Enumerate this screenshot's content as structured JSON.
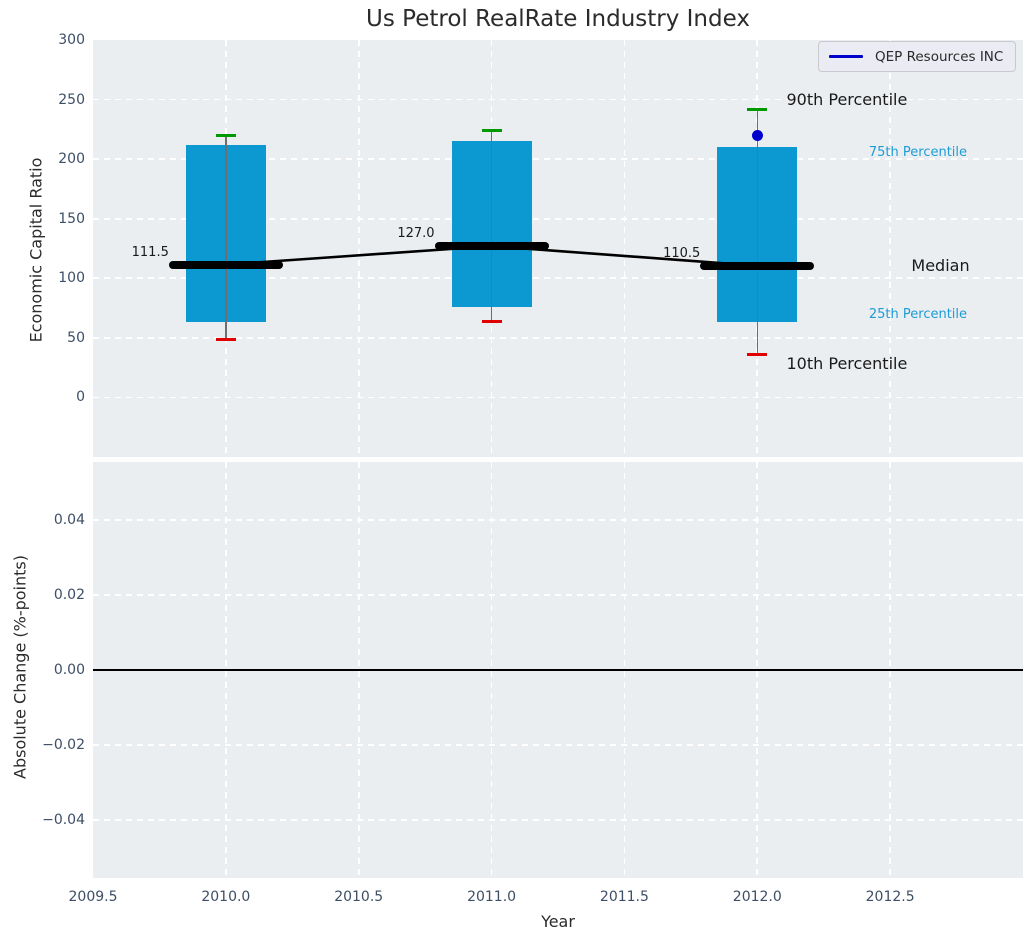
{
  "figure": {
    "title": "Us Petrol RealRate Industry Index",
    "axes_bg": "#eaeef0",
    "grid_color": "#ffffff"
  },
  "legend": {
    "label": "QEP Resources INC",
    "line_color": "#0000cd"
  },
  "xaxis": {
    "label": "Year",
    "range": [
      2009.5,
      2013.0
    ],
    "ticks": [
      {
        "label": "2009.5",
        "value": 2009.5
      },
      {
        "label": "2010.0",
        "value": 2010.0
      },
      {
        "label": "2010.5",
        "value": 2010.5
      },
      {
        "label": "2011.0",
        "value": 2011.0
      },
      {
        "label": "2011.5",
        "value": 2011.5
      },
      {
        "label": "2012.0",
        "value": 2012.0
      },
      {
        "label": "2012.5",
        "value": 2012.5
      }
    ]
  },
  "chart_data": [
    {
      "type": "boxplot",
      "title": "Us Petrol RealRate Industry Index",
      "ylabel": "Economic Capital Ratio",
      "ylim": [
        -50,
        300
      ],
      "grid": "on",
      "legend_position": "upper right",
      "box_color": "#0c99d1",
      "whisker_color": "#6e6e6e",
      "cap_top_color": "#009a00",
      "cap_bottom_color": "#e00000",
      "median_color": "#000000",
      "yticks": [
        {
          "label": "300",
          "value": 300
        },
        {
          "label": "250",
          "value": 250
        },
        {
          "label": "200",
          "value": 200
        },
        {
          "label": "150",
          "value": 150
        },
        {
          "label": "100",
          "value": 100
        },
        {
          "label": "50",
          "value": 50
        },
        {
          "label": "0",
          "value": 0
        }
      ],
      "boxes": [
        {
          "year": 2010,
          "p90": 220,
          "p75": 212,
          "median": 111.5,
          "p25": 63,
          "p10": 49,
          "median_label": "111.5"
        },
        {
          "year": 2011,
          "p90": 224,
          "p75": 215,
          "median": 127.0,
          "p25": 76,
          "p10": 64,
          "median_label": "127.0"
        },
        {
          "year": 2012,
          "p90": 242,
          "p75": 210,
          "median": 110.5,
          "p25": 63,
          "p10": 36,
          "median_label": "110.5"
        }
      ],
      "median_trend_line": {
        "x": [
          2010,
          2011,
          2012
        ],
        "y": [
          111.5,
          127.0,
          110.5
        ],
        "color": "#000000"
      },
      "company_point": {
        "series": "QEP Resources INC",
        "year": 2012,
        "value": 219.5,
        "color": "#0000cd"
      },
      "annotations": [
        {
          "text": "90th Percentile",
          "style": "black",
          "x": 2012.11,
          "value": 250
        },
        {
          "text": "75th Percentile",
          "style": "cyan",
          "x": 2012.42,
          "value": 205
        },
        {
          "text": "Median",
          "style": "black",
          "x": 2012.58,
          "value": 110.5
        },
        {
          "text": "25th Percentile",
          "style": "cyan",
          "x": 2012.42,
          "value": 69
        },
        {
          "text": "10th Percentile",
          "style": "black",
          "x": 2012.11,
          "value": 28
        }
      ]
    },
    {
      "type": "line",
      "ylabel": "Absolute Change (%-points)",
      "ylim": [
        -0.055,
        0.055
      ],
      "grid": "on",
      "zero_line_value": 0.0,
      "zero_line_color": "#000000",
      "yticks": [
        {
          "label": "0.04",
          "value": 0.04
        },
        {
          "label": "0.02",
          "value": 0.02
        },
        {
          "label": "0.00",
          "value": 0.0
        },
        {
          "label": "−0.02",
          "value": -0.02
        },
        {
          "label": "−0.04",
          "value": -0.04
        }
      ]
    }
  ]
}
